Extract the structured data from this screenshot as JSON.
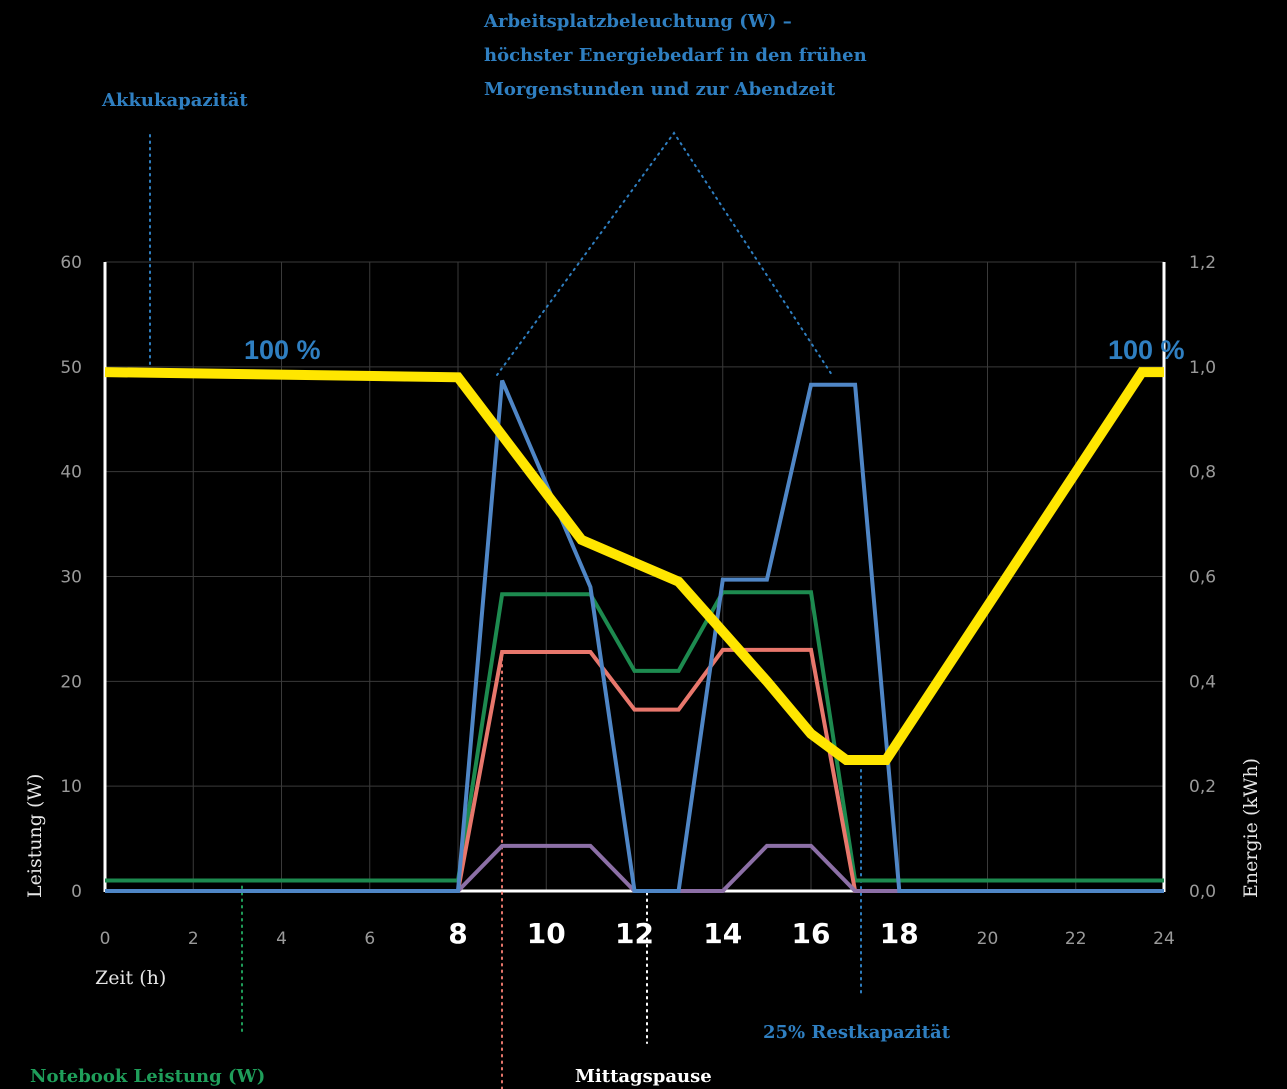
{
  "chart_data": {
    "type": "line",
    "xlabel": "Zeit (h)",
    "ylabel_left": "Leistung (W)",
    "ylabel_right": "Energie (kWh)",
    "xlim": [
      0,
      24
    ],
    "ylim_left": [
      0,
      60
    ],
    "ylim_right": [
      0,
      1.2
    ],
    "grid": true,
    "x_ticks": [
      {
        "v": 0,
        "label": "0",
        "bold": false
      },
      {
        "v": 2,
        "label": "2",
        "bold": false
      },
      {
        "v": 4,
        "label": "4",
        "bold": false
      },
      {
        "v": 6,
        "label": "6",
        "bold": false
      },
      {
        "v": 8,
        "label": "8",
        "bold": true
      },
      {
        "v": 10,
        "label": "10",
        "bold": true
      },
      {
        "v": 12,
        "label": "12",
        "bold": true
      },
      {
        "v": 14,
        "label": "14",
        "bold": true
      },
      {
        "v": 16,
        "label": "16",
        "bold": true
      },
      {
        "v": 18,
        "label": "18",
        "bold": true
      },
      {
        "v": 20,
        "label": "20",
        "bold": false
      },
      {
        "v": 22,
        "label": "22",
        "bold": false
      },
      {
        "v": 24,
        "label": "24",
        "bold": false
      }
    ],
    "y_ticks_left": [
      "0",
      "10",
      "20",
      "30",
      "40",
      "50",
      "60"
    ],
    "y_ticks_right": [
      "0,0",
      "0,2",
      "0,4",
      "0,6",
      "0,8",
      "1,0",
      "1,2"
    ],
    "series": [
      {
        "axis": "right",
        "color": "#ffe600",
        "x": [
          0,
          8,
          10.8,
          13,
          15,
          16,
          16.8,
          17.7,
          23.5,
          24
        ],
        "y": [
          0.99,
          0.98,
          0.67,
          0.59,
          0.4,
          0.3,
          0.25,
          0.25,
          0.99,
          0.99
        ]
      },
      {
        "axis": "left",
        "color": "#1d8a4f",
        "x": [
          0,
          8,
          9,
          11,
          12,
          13,
          14,
          16,
          17,
          24
        ],
        "y": [
          1,
          1,
          28.3,
          28.3,
          21,
          21,
          28.5,
          28.5,
          1,
          1
        ]
      },
      {
        "axis": "left",
        "color": "#e8776c",
        "x": [
          0,
          8,
          9,
          11,
          12,
          13,
          14,
          16,
          17,
          24
        ],
        "y": [
          0,
          0,
          22.8,
          22.8,
          17.3,
          17.3,
          23,
          23,
          0,
          0
        ]
      },
      {
        "axis": "left",
        "color": "#8c6fa6",
        "x": [
          0,
          8,
          9,
          11,
          12,
          14,
          15,
          16,
          17,
          24
        ],
        "y": [
          0,
          0,
          4.3,
          4.3,
          0,
          0,
          4.3,
          4.3,
          0,
          0
        ]
      },
      {
        "axis": "left",
        "color": "#4f86c6",
        "x": [
          0,
          8,
          9,
          11,
          12,
          13,
          14,
          15,
          16,
          17,
          18,
          24
        ],
        "y": [
          0,
          0,
          48.7,
          29,
          0,
          0,
          29.7,
          29.7,
          48.3,
          48.3,
          0,
          0
        ]
      }
    ],
    "annotations": {
      "akku_title": "Akkukapazität",
      "lighting_lines": [
        "Arbeitsplatzbeleuchtung (W) –",
        "höchster Energiebedarf in den frühen",
        "Morgenstunden und zur Abendzeit"
      ],
      "pct_left": "100 %",
      "pct_right": "100 %",
      "rest": "25% Restkapazität",
      "notebook": "Notebook Leistung (W)",
      "mittag": "Mittagspause"
    }
  },
  "colors": {
    "yellow": "#ffe600",
    "blue_text": "#2f7fc1",
    "green_text": "#1f9e5a",
    "grid": "#3a3a3a",
    "tick": "#9a9a9a"
  }
}
